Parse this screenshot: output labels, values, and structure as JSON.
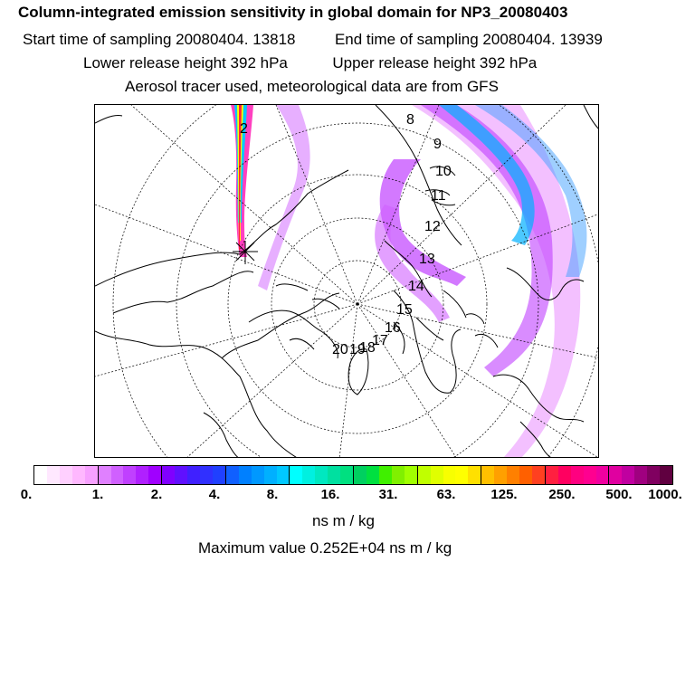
{
  "header": {
    "title": "Column-integrated emission sensitivity in global domain for NP3_20080403",
    "start_label": "Start time of sampling 20080404. 13818",
    "end_label": "End time of sampling 20080404. 13939",
    "lower_label": "Lower release height  392 hPa",
    "upper_label": "Upper release height  392 hPa",
    "tracer_note": "Aerosol tracer used, meteorological data are from GFS"
  },
  "map": {
    "day_labels": [
      "2",
      "8",
      "9",
      "10",
      "11",
      "12",
      "13",
      "14",
      "15",
      "16",
      "17",
      "18",
      "19",
      "20"
    ],
    "colors": {
      "plume_purple": "#a000ff",
      "plume_cyan": "#00c8ff",
      "coast": "#000000"
    }
  },
  "colorbar": {
    "ticks": [
      "0.",
      "1.",
      "2.",
      "4.",
      "8.",
      "16.",
      "31.",
      "63.",
      "125.",
      "250.",
      "500.",
      "1000."
    ],
    "unit": "ns m / kg",
    "max_value": "Maximum value  0.252E+04 ns m / kg",
    "colors": [
      "#ffffff",
      "#ffe8ff",
      "#ffd0ff",
      "#ffb8ff",
      "#f7a0ff",
      "#e080ff",
      "#d060ff",
      "#c040ff",
      "#b020ff",
      "#a000ff",
      "#8000ff",
      "#6010ff",
      "#4020ff",
      "#3030ff",
      "#2040ff",
      "#1060ff",
      "#0080ff",
      "#0098ff",
      "#00b0ff",
      "#00c8ff",
      "#00ffff",
      "#00f0e0",
      "#00e8c0",
      "#00e0a0",
      "#00e080",
      "#00d060",
      "#00e040",
      "#40f000",
      "#80f000",
      "#a0ff00",
      "#c0ff00",
      "#e0ff00",
      "#f8ff00",
      "#ffff00",
      "#ffe000",
      "#ffc000",
      "#ffa000",
      "#ff8000",
      "#ff6000",
      "#ff4020",
      "#ff2040",
      "#ff0060",
      "#ff0080",
      "#ff0090",
      "#f000a0",
      "#e000a0",
      "#c000a0",
      "#a00080",
      "#800060",
      "#600040"
    ]
  }
}
